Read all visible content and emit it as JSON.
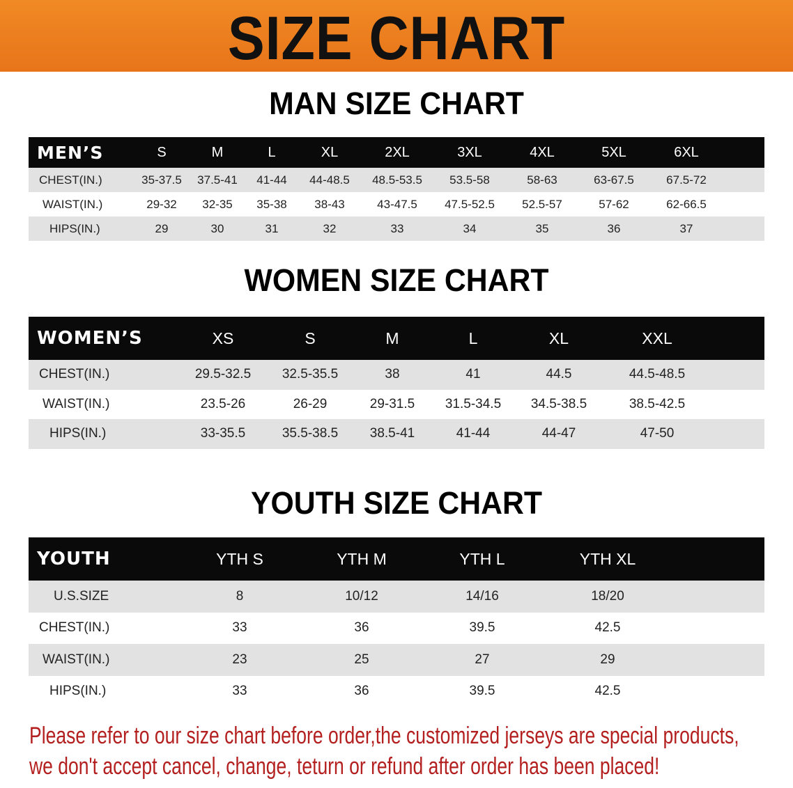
{
  "banner": {
    "title": "SIZE CHART",
    "color": "#ec7d1f"
  },
  "men": {
    "title": "MAN SIZE CHART",
    "header": "MEN’S",
    "sizes": [
      "S",
      "M",
      "L",
      "XL",
      "2XL",
      "3XL",
      "4XL",
      "5XL",
      "6XL"
    ],
    "rows": [
      {
        "label": "CHEST(IN.)",
        "values": [
          "35-37.5",
          "37.5-41",
          "41-44",
          "44-48.5",
          "48.5-53.5",
          "53.5-58",
          "58-63",
          "63-67.5",
          "67.5-72"
        ]
      },
      {
        "label": "WAIST(IN.)",
        "values": [
          "29-32",
          "32-35",
          "35-38",
          "38-43",
          "43-47.5",
          "47.5-52.5",
          "52.5-57",
          "57-62",
          "62-66.5"
        ]
      },
      {
        "label": "HIPS(IN.)",
        "values": [
          "29",
          "30",
          "31",
          "32",
          "33",
          "34",
          "35",
          "36",
          "37"
        ]
      }
    ]
  },
  "women": {
    "title": "WOMEN SIZE CHART",
    "header": "WOMEN’S",
    "sizes": [
      "XS",
      "S",
      "M",
      "L",
      "XL",
      "XXL"
    ],
    "rows": [
      {
        "label": "CHEST(IN.)",
        "values": [
          "29.5-32.5",
          "32.5-35.5",
          "38",
          "41",
          "44.5",
          "44.5-48.5"
        ]
      },
      {
        "label": "WAIST(IN.)",
        "values": [
          "23.5-26",
          "26-29",
          "29-31.5",
          "31.5-34.5",
          "34.5-38.5",
          "38.5-42.5"
        ]
      },
      {
        "label": "HIPS(IN.)",
        "values": [
          "33-35.5",
          "35.5-38.5",
          "38.5-41",
          "41-44",
          "44-47",
          "47-50"
        ]
      }
    ]
  },
  "youth": {
    "title": "YOUTH SIZE CHART",
    "header": "YOUTH",
    "sizes": [
      "YTH S",
      "YTH M",
      "YTH L",
      "YTH XL"
    ],
    "rows": [
      {
        "label": "U.S.SIZE",
        "values": [
          "8",
          "10/12",
          "14/16",
          "18/20"
        ]
      },
      {
        "label": "CHEST(IN.)",
        "values": [
          "33",
          "36",
          "39.5",
          "42.5"
        ]
      },
      {
        "label": "WAIST(IN.)",
        "values": [
          "23",
          "25",
          "27",
          "29"
        ]
      },
      {
        "label": "HIPS(IN.)",
        "values": [
          "33",
          "36",
          "39.5",
          "42.5"
        ]
      }
    ]
  },
  "notice": {
    "line1": "Please refer to our size chart before order,the customized jerseys are special products,",
    "line2": "we don't accept cancel, change, teturn or refund after order has been placed!",
    "color": "#b3201f"
  }
}
